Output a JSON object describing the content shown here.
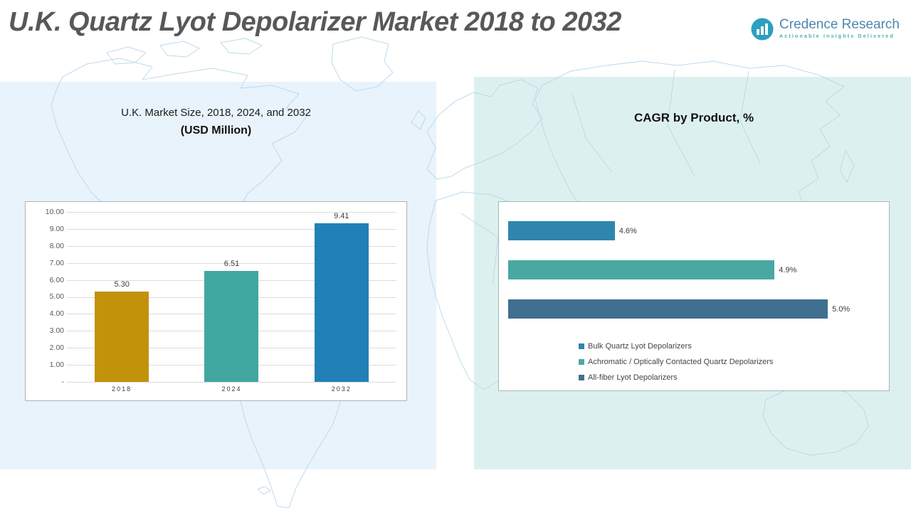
{
  "header": {
    "title": "U.K. Quartz Lyot Depolarizer Market 2018 to 2032",
    "logo": {
      "name": "Credence Research",
      "tagline": "Actionable Insights Delivered",
      "icon_color": "#2d9fc0",
      "name_color": "#4e87b0",
      "tagline_color": "#49b2a8"
    }
  },
  "left_panel": {
    "heading_line1": "U.K. Market Size, 2018, 2024, and 2032",
    "heading_line2": "(USD Million)",
    "background_color": "#e9f3fb"
  },
  "right_panel": {
    "heading": "CAGR by Product, %",
    "background_color": "#dcf1ef"
  },
  "chart_data": [
    {
      "type": "bar",
      "title": "U.K. Market Size, 2018, 2024, and 2032 (USD Million)",
      "categories": [
        "2018",
        "2024",
        "2032"
      ],
      "values": [
        5.3,
        6.51,
        9.41
      ],
      "value_labels": [
        "5.30",
        "6.51",
        "9.41"
      ],
      "colors": [
        "#C3920B",
        "#41A7A1",
        "#2180B5"
      ],
      "xlabel": "",
      "ylabel": "",
      "ylim": [
        0,
        10
      ],
      "yticks": [
        "10.00",
        "9.00",
        "8.00",
        "7.00",
        "6.00",
        "5.00",
        "4.00",
        "3.00",
        "2.00",
        "1.00",
        "-"
      ],
      "grid": true,
      "legend_position": "none"
    },
    {
      "type": "bar",
      "orientation": "horizontal",
      "title": "CAGR by Product, %",
      "series": [
        {
          "name": "Bulk Quartz Lyot Depolarizers",
          "value": 4.6,
          "label": "4.6%",
          "color": "#2E86AE"
        },
        {
          "name": "Achromatic / Optically Contacted Quartz Depolarizers",
          "value": 4.9,
          "label": "4.9%",
          "color": "#4AA8A2"
        },
        {
          "name": "All-fiber Lyot Depolarizers",
          "value": 5.0,
          "label": "5.0%",
          "color": "#40708F"
        }
      ],
      "xlim": [
        4.4,
        5.1
      ],
      "grid": false,
      "legend_position": "bottom-inside"
    }
  ]
}
